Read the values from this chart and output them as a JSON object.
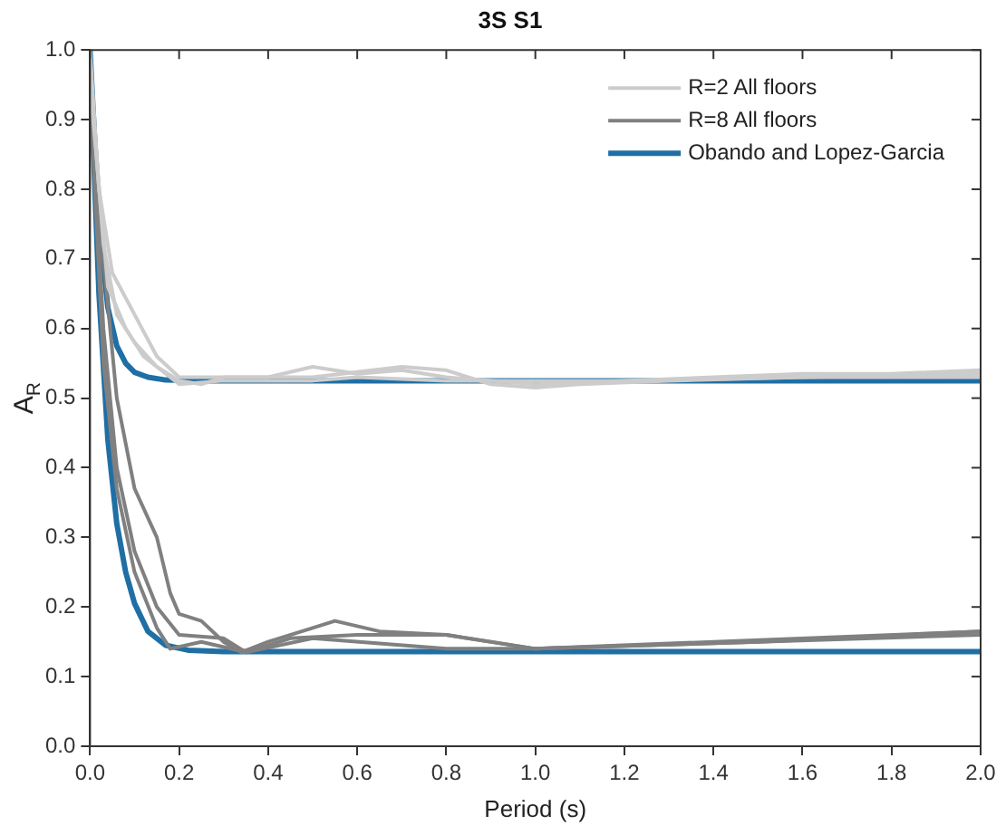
{
  "chart_data": {
    "type": "line",
    "title": "3S S1",
    "xlabel": "Period (s)",
    "ylabel": "A$_{R}$",
    "xlim": [
      0,
      2
    ],
    "ylim": [
      0,
      1
    ],
    "xticks": [
      {
        "value": 0,
        "label": "0.0"
      },
      {
        "value": 0.2,
        "label": "0.2"
      },
      {
        "value": 0.4,
        "label": "0.4"
      },
      {
        "value": 0.6,
        "label": "0.6"
      },
      {
        "value": 0.8,
        "label": "0.8"
      },
      {
        "value": 1,
        "label": "1.0"
      },
      {
        "value": 1.2,
        "label": "1.2"
      },
      {
        "value": 1.4,
        "label": "1.4"
      },
      {
        "value": 1.6,
        "label": "1.6"
      },
      {
        "value": 1.8,
        "label": "1.8"
      },
      {
        "value": 2,
        "label": "2.0"
      }
    ],
    "yticks": [
      {
        "value": 0,
        "label": "0.0"
      },
      {
        "value": 0.1,
        "label": "0.1"
      },
      {
        "value": 0.2,
        "label": "0.2"
      },
      {
        "value": 0.3,
        "label": "0.3"
      },
      {
        "value": 0.4,
        "label": "0.4"
      },
      {
        "value": 0.5,
        "label": "0.5"
      },
      {
        "value": 0.6,
        "label": "0.6"
      },
      {
        "value": 0.7,
        "label": "0.7"
      },
      {
        "value": 0.8,
        "label": "0.8"
      },
      {
        "value": 0.9,
        "label": "0.9"
      },
      {
        "value": 1,
        "label": "1.0"
      }
    ],
    "grid": false,
    "legend": "top right",
    "marker": "none",
    "line_style": "solid",
    "series": [
      {
        "name": "R=2 All floors",
        "color": "#cccccc",
        "x": [
          0,
          0.02,
          0.05,
          0.1,
          0.15,
          0.2,
          0.3,
          0.4,
          0.5,
          0.6,
          0.7,
          0.8,
          1.0,
          1.2,
          1.4,
          1.6,
          1.8,
          2.0
        ],
        "values": [
          1,
          0.8,
          0.68,
          0.62,
          0.56,
          0.53,
          0.53,
          0.53,
          0.545,
          0.535,
          0.54,
          0.53,
          0.52,
          0.525,
          0.53,
          0.535,
          0.535,
          0.54
        ]
      },
      {
        "color": "#cccccc",
        "x": [
          0,
          0.03,
          0.06,
          0.1,
          0.15,
          0.2,
          0.25,
          0.3,
          0.5,
          0.7,
          0.8,
          0.9,
          1.0,
          1.1,
          1.3,
          1.6,
          2.0
        ],
        "values": [
          0.97,
          0.72,
          0.62,
          0.58,
          0.545,
          0.525,
          0.52,
          0.53,
          0.53,
          0.545,
          0.54,
          0.52,
          0.515,
          0.52,
          0.525,
          0.53,
          0.535
        ]
      },
      {
        "color": "#cccccc",
        "x": [
          0,
          0.04,
          0.08,
          0.12,
          0.18,
          0.2,
          0.3,
          0.5,
          0.6,
          0.8,
          1.2,
          1.6,
          2.0
        ],
        "values": [
          0.95,
          0.66,
          0.6,
          0.56,
          0.53,
          0.52,
          0.525,
          0.525,
          0.53,
          0.525,
          0.525,
          0.53,
          0.53
        ]
      },
      {
        "name": "R=8 All floors",
        "color": "#808080",
        "x": [
          0,
          0.03,
          0.06,
          0.1,
          0.15,
          0.18,
          0.2,
          0.25,
          0.3,
          0.34,
          0.4,
          0.5,
          0.55,
          0.65,
          0.8,
          1.0,
          1.4,
          2.0
        ],
        "values": [
          0.99,
          0.7,
          0.5,
          0.37,
          0.3,
          0.22,
          0.19,
          0.18,
          0.15,
          0.135,
          0.15,
          0.17,
          0.18,
          0.165,
          0.16,
          0.14,
          0.15,
          0.165
        ]
      },
      {
        "color": "#808080",
        "x": [
          0,
          0.03,
          0.06,
          0.1,
          0.15,
          0.2,
          0.3,
          0.35,
          0.45,
          0.6,
          0.8,
          1.0,
          1.5,
          2.0
        ],
        "values": [
          0.96,
          0.6,
          0.4,
          0.28,
          0.2,
          0.16,
          0.155,
          0.135,
          0.155,
          0.16,
          0.16,
          0.14,
          0.15,
          0.16
        ]
      },
      {
        "color": "#808080",
        "x": [
          0,
          0.03,
          0.06,
          0.1,
          0.15,
          0.18,
          0.25,
          0.35,
          0.5,
          0.8,
          1.0,
          1.5,
          2.0
        ],
        "values": [
          0.94,
          0.55,
          0.37,
          0.25,
          0.17,
          0.14,
          0.15,
          0.135,
          0.155,
          0.14,
          0.14,
          0.15,
          0.165
        ]
      },
      {
        "name": "Obando and Lopez-Garcia",
        "color": "#1f6fa5",
        "x": [
          0,
          0.02,
          0.04,
          0.06,
          0.08,
          0.1,
          0.13,
          0.17,
          0.25,
          2.0
        ],
        "values": [
          1,
          0.75,
          0.63,
          0.575,
          0.55,
          0.537,
          0.53,
          0.526,
          0.525,
          0.525
        ]
      },
      {
        "color": "#1f6fa5",
        "x": [
          0,
          0.02,
          0.04,
          0.06,
          0.08,
          0.1,
          0.13,
          0.17,
          0.22,
          0.3,
          2.0
        ],
        "values": [
          0.98,
          0.65,
          0.44,
          0.32,
          0.25,
          0.205,
          0.165,
          0.145,
          0.138,
          0.136,
          0.136
        ]
      }
    ]
  }
}
